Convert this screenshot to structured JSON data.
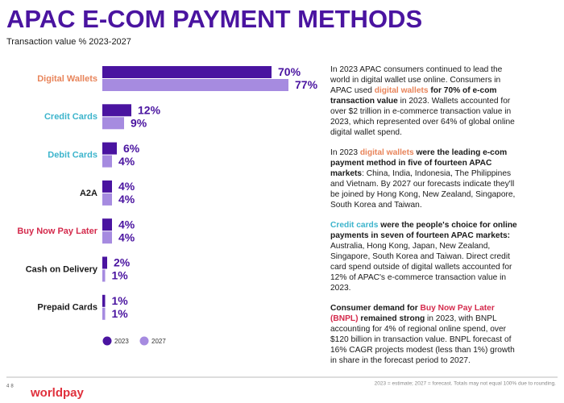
{
  "chart_data": {
    "type": "hbar",
    "title": "APAC E-COM PAYMENT METHODS",
    "subtitle": "Transaction value % 2023-2027",
    "categories": [
      "Digital Wallets",
      "Credit Cards",
      "Debit Cards",
      "A2A",
      "Buy Now Pay Later",
      "Cash on Delivery",
      "Prepaid Cards"
    ],
    "category_colors": [
      "#e8845a",
      "#3cb4cc",
      "#3cb4cc",
      "#1a1a1a",
      "#d42a4c",
      "#1a1a1a",
      "#1a1a1a"
    ],
    "series": [
      {
        "name": "2023",
        "color": "#4a14a0",
        "values": [
          70,
          12,
          6,
          4,
          4,
          2,
          1
        ],
        "value_labels": [
          "70%",
          "12%",
          "6%",
          "4%",
          "4%",
          "2%",
          "1%"
        ]
      },
      {
        "name": "2027",
        "color": "#a68be0",
        "values": [
          77,
          9,
          4,
          4,
          4,
          1,
          1
        ],
        "value_labels": [
          "77%",
          "9%",
          "4%",
          "4%",
          "4%",
          "1%",
          "1%"
        ]
      }
    ],
    "legend": "bottom-left"
  },
  "text": {
    "paragraphs": [
      {
        "runs": [
          {
            "text": "In 2023 APAC consumers continued to lead the world in digital wallet use online. Consumers in APAC used "
          },
          {
            "text": "digital wallets",
            "bold": true,
            "color": "#e8845a"
          },
          {
            "text": " for 70% of e-com transaction value",
            "bold": true
          },
          {
            "text": " in 2023. Wallets accounted for over $2 trillion in e-commerce transaction value in 2023, which represented over 64% of global online digital wallet spend."
          }
        ]
      },
      {
        "runs": [
          {
            "text": "In 2023 "
          },
          {
            "text": "digital wallets",
            "bold": true,
            "color": "#e8845a"
          },
          {
            "text": " were the leading e-com payment method in five of fourteen APAC markets",
            "bold": true
          },
          {
            "text": ": China, India, Indonesia, The Philippines and Vietnam. By 2027 our forecasts indicate they'll be joined by Hong Kong, New Zealand, Singapore, South Korea and Taiwan."
          }
        ]
      },
      {
        "runs": [
          {
            "text": "Credit cards",
            "bold": true,
            "color": "#3cb4cc"
          },
          {
            "text": " were the people's choice for online payments in seven of fourteen APAC markets:",
            "bold": true
          },
          {
            "text": " Australia, Hong Kong, Japan, New Zealand, Singapore, South Korea and Taiwan. Direct credit card spend outside of digital wallets accounted for 12% of APAC's e-commerce transaction value in 2023."
          }
        ]
      },
      {
        "runs": [
          {
            "text": "Consumer demand for ",
            "bold": true
          },
          {
            "text": "Buy Now Pay Later (BNPL)",
            "bold": true,
            "color": "#d42a4c"
          },
          {
            "text": " remained strong",
            "bold": true
          },
          {
            "text": " in 2023, with BNPL accounting for 4% of regional online spend, over $120 billion in transaction value. BNPL forecast of 16% CAGR projects modest (less than 1%) growth in share in the forecast period to 2027."
          }
        ]
      }
    ]
  },
  "footer": {
    "page_number": "48",
    "brand": "worldpay",
    "note": "2023 = estimate; 2027 = forecast. Totals may not equal 100% due to rounding."
  }
}
